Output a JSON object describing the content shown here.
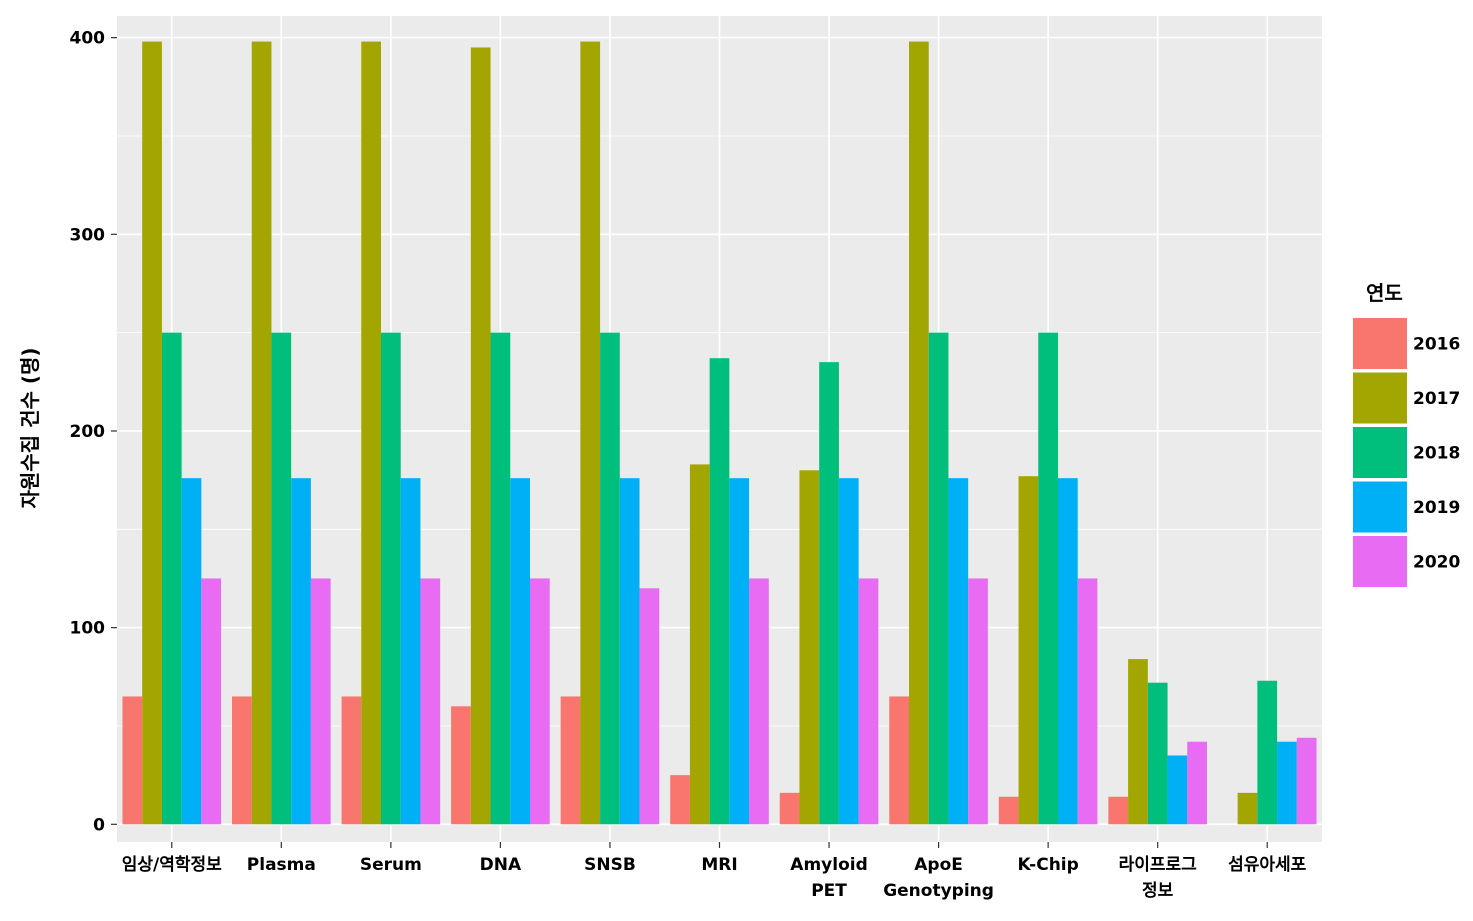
{
  "chart_data": {
    "type": "bar",
    "title": "",
    "xlabel": "",
    "ylabel": "자원수집 건수 (명)",
    "ylim": [
      -9,
      411
    ],
    "yticks": [
      0,
      100,
      200,
      300,
      400
    ],
    "grid": true,
    "legend_position": "right",
    "legend_title": "연도",
    "categories": [
      [
        "임상/역학정보"
      ],
      [
        "Plasma"
      ],
      [
        "Serum"
      ],
      [
        "DNA"
      ],
      [
        "SNSB"
      ],
      [
        "MRI"
      ],
      [
        "Amyloid",
        "PET"
      ],
      [
        "ApoE",
        "Genotyping"
      ],
      [
        "K-Chip"
      ],
      [
        "라이프로그",
        "정보"
      ],
      [
        "섬유아세포"
      ]
    ],
    "series": [
      {
        "name": "2016",
        "color": "#F8766D",
        "values": [
          65,
          65,
          65,
          60,
          65,
          25,
          16,
          65,
          14,
          14,
          null
        ]
      },
      {
        "name": "2017",
        "color": "#A3A500",
        "values": [
          398,
          398,
          398,
          395,
          398,
          183,
          180,
          398,
          177,
          84,
          16
        ]
      },
      {
        "name": "2018",
        "color": "#00BF7D",
        "values": [
          250,
          250,
          250,
          250,
          250,
          237,
          235,
          250,
          250,
          72,
          73
        ]
      },
      {
        "name": "2019",
        "color": "#00B0F6",
        "values": [
          176,
          176,
          176,
          176,
          176,
          176,
          176,
          176,
          176,
          35,
          42
        ]
      },
      {
        "name": "2020",
        "color": "#E76BF3",
        "values": [
          125,
          125,
          125,
          125,
          120,
          125,
          125,
          125,
          125,
          42,
          44
        ]
      }
    ]
  }
}
